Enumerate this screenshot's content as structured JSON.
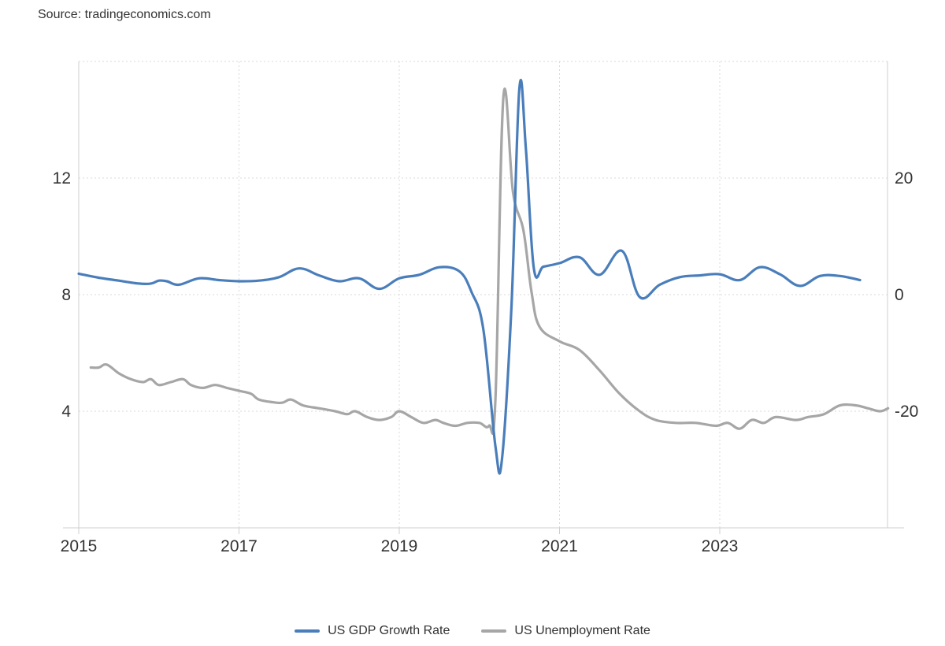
{
  "source": "Source: tradingeconomics.com",
  "chart_data": {
    "type": "line",
    "title": "",
    "x_ticks": [
      "2015",
      "2017",
      "2019",
      "2021",
      "2023"
    ],
    "x_range": [
      2015.0,
      2025.1
    ],
    "y_left": {
      "ticks": [
        "4",
        "8",
        "12"
      ],
      "range": [
        0,
        16
      ]
    },
    "y_right": {
      "ticks": [
        "-20",
        "0",
        "20"
      ],
      "range": [
        -40,
        40
      ]
    },
    "grid": true,
    "legend_position": "bottom",
    "series": [
      {
        "name": "US GDP Growth Rate",
        "axis": "right",
        "color": "#4a7ebb",
        "points": [
          [
            2015.0,
            3.6
          ],
          [
            2015.25,
            2.9
          ],
          [
            2015.5,
            2.4
          ],
          [
            2015.75,
            1.9
          ],
          [
            2015.9,
            1.9
          ],
          [
            2016.0,
            2.4
          ],
          [
            2016.1,
            2.3
          ],
          [
            2016.25,
            1.7
          ],
          [
            2016.5,
            2.8
          ],
          [
            2016.75,
            2.5
          ],
          [
            2017.0,
            2.3
          ],
          [
            2017.25,
            2.4
          ],
          [
            2017.5,
            3.0
          ],
          [
            2017.75,
            4.5
          ],
          [
            2018.0,
            3.3
          ],
          [
            2018.25,
            2.3
          ],
          [
            2018.5,
            2.8
          ],
          [
            2018.75,
            1.0
          ],
          [
            2019.0,
            2.8
          ],
          [
            2019.25,
            3.4
          ],
          [
            2019.5,
            4.7
          ],
          [
            2019.75,
            4.0
          ],
          [
            2019.9,
            0.5
          ],
          [
            2020.05,
            -6.0
          ],
          [
            2020.2,
            -26.0
          ],
          [
            2020.28,
            -28.5
          ],
          [
            2020.4,
            -2.0
          ],
          [
            2020.5,
            35.5
          ],
          [
            2020.58,
            25.0
          ],
          [
            2020.68,
            4.5
          ],
          [
            2020.8,
            4.8
          ],
          [
            2021.0,
            5.4
          ],
          [
            2021.25,
            6.4
          ],
          [
            2021.5,
            3.4
          ],
          [
            2021.78,
            7.5
          ],
          [
            2022.0,
            -0.4
          ],
          [
            2022.25,
            1.7
          ],
          [
            2022.5,
            3.0
          ],
          [
            2022.75,
            3.3
          ],
          [
            2023.0,
            3.5
          ],
          [
            2023.25,
            2.5
          ],
          [
            2023.5,
            4.7
          ],
          [
            2023.75,
            3.5
          ],
          [
            2024.0,
            1.5
          ],
          [
            2024.25,
            3.2
          ],
          [
            2024.5,
            3.2
          ],
          [
            2024.75,
            2.5
          ]
        ]
      },
      {
        "name": "US Unemployment Rate",
        "axis": "left",
        "color": "#a6a6a6",
        "points": [
          [
            2015.15,
            5.5
          ],
          [
            2015.25,
            5.5
          ],
          [
            2015.35,
            5.6
          ],
          [
            2015.5,
            5.3
          ],
          [
            2015.65,
            5.1
          ],
          [
            2015.8,
            5.0
          ],
          [
            2015.9,
            5.1
          ],
          [
            2016.0,
            4.9
          ],
          [
            2016.15,
            5.0
          ],
          [
            2016.3,
            5.1
          ],
          [
            2016.4,
            4.9
          ],
          [
            2016.55,
            4.8
          ],
          [
            2016.7,
            4.9
          ],
          [
            2016.85,
            4.8
          ],
          [
            2017.0,
            4.7
          ],
          [
            2017.15,
            4.6
          ],
          [
            2017.25,
            4.4
          ],
          [
            2017.45,
            4.3
          ],
          [
            2017.55,
            4.3
          ],
          [
            2017.65,
            4.4
          ],
          [
            2017.8,
            4.2
          ],
          [
            2018.0,
            4.1
          ],
          [
            2018.2,
            4.0
          ],
          [
            2018.35,
            3.9
          ],
          [
            2018.45,
            4.0
          ],
          [
            2018.6,
            3.8
          ],
          [
            2018.75,
            3.7
          ],
          [
            2018.9,
            3.8
          ],
          [
            2019.0,
            4.0
          ],
          [
            2019.15,
            3.8
          ],
          [
            2019.3,
            3.6
          ],
          [
            2019.45,
            3.7
          ],
          [
            2019.55,
            3.6
          ],
          [
            2019.7,
            3.5
          ],
          [
            2019.85,
            3.6
          ],
          [
            2020.0,
            3.6
          ],
          [
            2020.12,
            3.5
          ],
          [
            2020.2,
            4.4
          ],
          [
            2020.3,
            14.8
          ],
          [
            2020.42,
            11.5
          ],
          [
            2020.55,
            10.2
          ],
          [
            2020.65,
            8.1
          ],
          [
            2020.75,
            6.9
          ],
          [
            2021.0,
            6.4
          ],
          [
            2021.25,
            6.1
          ],
          [
            2021.5,
            5.4
          ],
          [
            2021.75,
            4.6
          ],
          [
            2022.0,
            4.0
          ],
          [
            2022.2,
            3.7
          ],
          [
            2022.45,
            3.6
          ],
          [
            2022.7,
            3.6
          ],
          [
            2022.95,
            3.5
          ],
          [
            2023.1,
            3.6
          ],
          [
            2023.25,
            3.4
          ],
          [
            2023.4,
            3.7
          ],
          [
            2023.55,
            3.6
          ],
          [
            2023.7,
            3.8
          ],
          [
            2023.95,
            3.7
          ],
          [
            2024.1,
            3.8
          ],
          [
            2024.3,
            3.9
          ],
          [
            2024.5,
            4.2
          ],
          [
            2024.7,
            4.2
          ],
          [
            2024.85,
            4.1
          ],
          [
            2025.0,
            4.0
          ],
          [
            2025.1,
            4.1
          ]
        ]
      }
    ]
  }
}
